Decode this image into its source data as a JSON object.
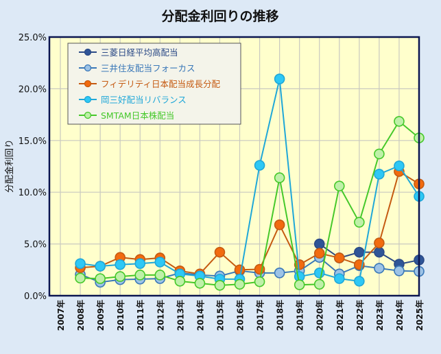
{
  "chart_data": {
    "type": "line",
    "title": "分配金利回りの推移",
    "ylabel": "分配金利回り",
    "xlabel": "",
    "categories": [
      "2007年",
      "2008年",
      "2009年",
      "2010年",
      "2011年",
      "2012年",
      "2013年",
      "2014年",
      "2015年",
      "2016年",
      "2017年",
      "2018年",
      "2019年",
      "2020年",
      "2021年",
      "2022年",
      "2023年",
      "2024年",
      "2025年"
    ],
    "ylim": [
      0,
      25
    ],
    "yticks": [
      "0.0%",
      "5.0%",
      "10.0%",
      "15.0%",
      "20.0%",
      "25.0%"
    ],
    "grid": true,
    "legend_position": "top-left",
    "plot_background": "#ffffcc",
    "series": [
      {
        "name": "三菱日経平均高配当",
        "color": "#2b4a86",
        "fill": "#2f5597",
        "values": [
          null,
          null,
          null,
          null,
          null,
          null,
          null,
          null,
          null,
          null,
          null,
          null,
          null,
          5.0,
          3.65,
          4.2,
          4.2,
          3.05,
          3.45
        ]
      },
      {
        "name": "三井住友配当フォーカス",
        "color": "#3a78b8",
        "fill": "#9dc3e6",
        "values": [
          null,
          2.05,
          1.3,
          1.55,
          1.6,
          1.65,
          2.2,
          2.0,
          1.9,
          2.4,
          2.2,
          2.2,
          2.4,
          3.7,
          2.1,
          2.9,
          2.65,
          2.4,
          2.35
        ]
      },
      {
        "name": "フィデリティ日本配当成長分配",
        "color": "#c55a11",
        "fill": "#f26b0f",
        "values": [
          null,
          2.7,
          2.85,
          3.7,
          3.5,
          3.65,
          2.4,
          2.1,
          4.2,
          2.5,
          2.55,
          6.85,
          3.0,
          4.1,
          3.65,
          3.0,
          5.1,
          12.0,
          10.8
        ]
      },
      {
        "name": "岡三好配当リバランス",
        "color": "#1fa7d8",
        "fill": "#2ec8f5",
        "values": [
          null,
          3.1,
          2.85,
          3.0,
          3.1,
          3.25,
          2.1,
          1.9,
          1.6,
          1.6,
          12.6,
          20.95,
          1.85,
          2.2,
          1.65,
          1.4,
          11.75,
          12.55,
          9.6
        ]
      },
      {
        "name": "SMTAM日本株配当",
        "color": "#45c82a",
        "fill": "#bff0a8",
        "values": [
          null,
          1.7,
          1.65,
          1.85,
          2.0,
          2.0,
          1.4,
          1.2,
          1.0,
          1.1,
          1.35,
          11.4,
          1.05,
          1.1,
          10.6,
          7.1,
          13.7,
          16.85,
          15.25
        ]
      }
    ]
  }
}
